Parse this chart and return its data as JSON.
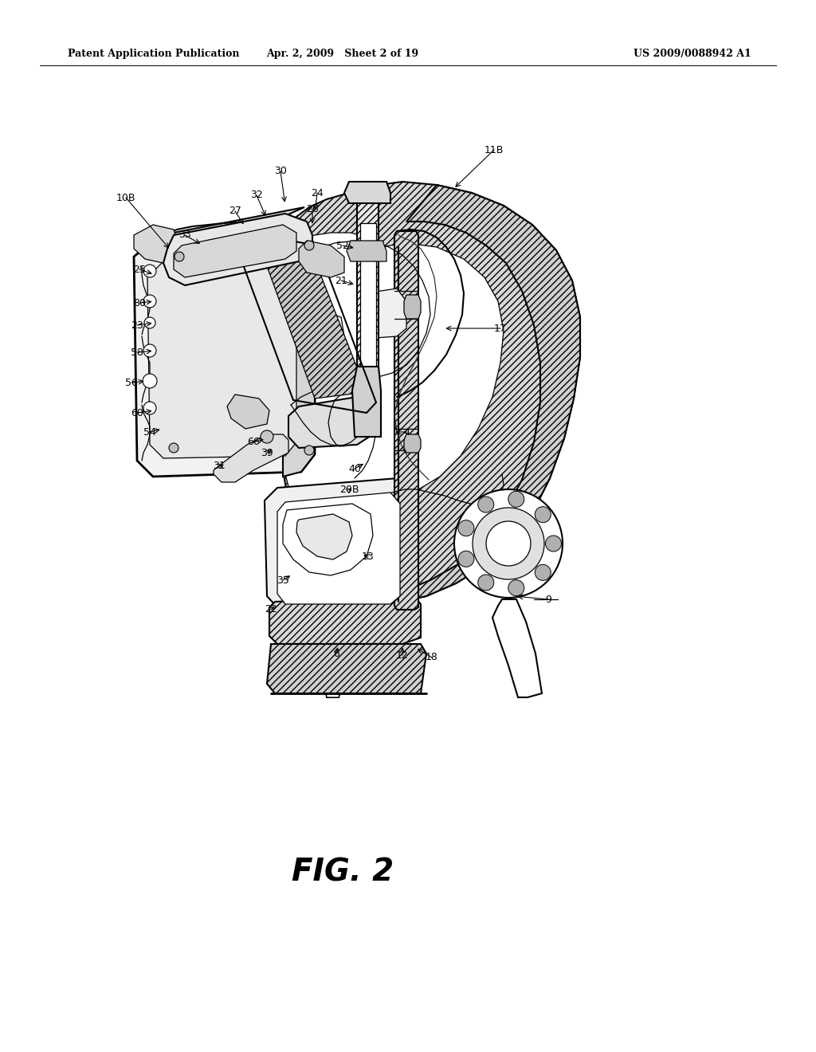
{
  "bg_color": "#ffffff",
  "header_left": "Patent Application Publication",
  "header_center": "Apr. 2, 2009   Sheet 2 of 19",
  "header_right": "US 2009/0088942 A1",
  "figure_label": "FIG. 2",
  "header_fontsize": 9,
  "fig_label_fontsize": 28,
  "lfs": 9
}
